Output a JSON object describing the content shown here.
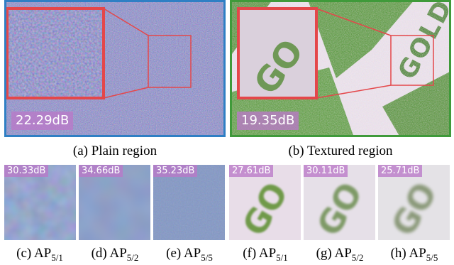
{
  "figure": {
    "top_panels": [
      {
        "id": "a",
        "psnr": "22.29dB",
        "caption_letter": "(a)",
        "caption_text": "Plain region",
        "border_color": "#2f7fc4"
      },
      {
        "id": "b",
        "psnr": "19.35dB",
        "caption_letter": "(b)",
        "caption_text": "Textured region",
        "border_color": "#3f9a3a"
      }
    ],
    "crops": [
      {
        "id": "c",
        "psnr": "30.33dB",
        "caption_letter": "(c)",
        "ap_main": "AP",
        "ap_sub": "5/1"
      },
      {
        "id": "d",
        "psnr": "34.66dB",
        "caption_letter": "(d)",
        "ap_main": "AP",
        "ap_sub": "5/2"
      },
      {
        "id": "e",
        "psnr": "35.23dB",
        "caption_letter": "(e)",
        "ap_main": "AP",
        "ap_sub": "5/5"
      },
      {
        "id": "f",
        "psnr": "27.61dB",
        "caption_letter": "(f)",
        "ap_main": "AP",
        "ap_sub": "5/1"
      },
      {
        "id": "g",
        "psnr": "30.11dB",
        "caption_letter": "(g)",
        "ap_main": "AP",
        "ap_sub": "5/2"
      },
      {
        "id": "h",
        "psnr": "25.71dB",
        "caption_letter": "(h)",
        "ap_main": "AP",
        "ap_sub": "5/5"
      }
    ],
    "zoom_box_color": "#e4474a"
  }
}
